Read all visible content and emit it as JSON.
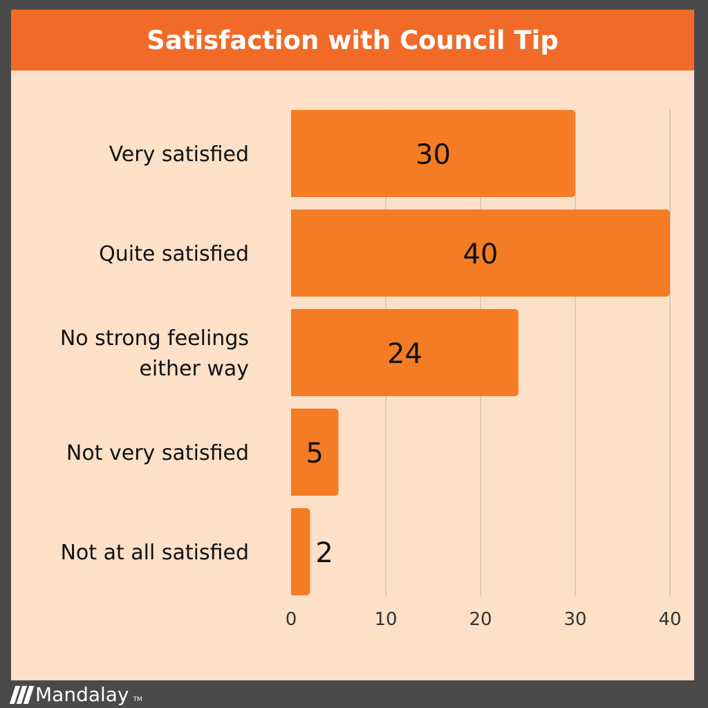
{
  "chart_data": {
    "type": "bar",
    "orientation": "horizontal",
    "title": "Satisfaction with Council Tip",
    "categories": [
      [
        "Very satisfied"
      ],
      [
        "Quite satisfied"
      ],
      [
        "No strong feelings",
        "either way"
      ],
      [
        "Not very satisfied"
      ],
      [
        "Not at all satisfied"
      ]
    ],
    "values": [
      30,
      40,
      24,
      5,
      2
    ],
    "data_labels": [
      "30",
      "40",
      "24",
      "5",
      "2"
    ],
    "xlim": [
      0,
      40
    ],
    "x_ticks": [
      0,
      10,
      20,
      30,
      40
    ],
    "x_tick_labels": [
      "0",
      "10",
      "20",
      "30",
      "40"
    ],
    "grid": "vertical",
    "bar_color": "#f47c24"
  },
  "colors": {
    "title_bar": "#f26a27",
    "panel": "#fde0c8",
    "frame": "#4a4a4a",
    "gridline": "#bfb3a8"
  },
  "brand": {
    "name": "Mandalay",
    "tm": "TM",
    "icon": "mandalay-logo-icon"
  }
}
